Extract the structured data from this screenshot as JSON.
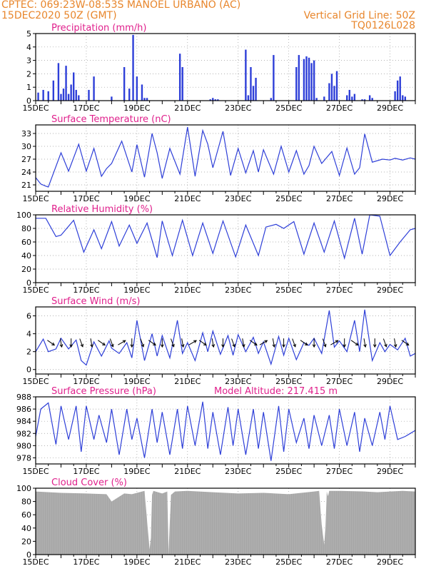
{
  "header": {
    "line1": "CPTEC:   069:23W-08:53S   MANOEL URBANO (AC)",
    "line2": "15DEC2020 50Z (GMT)",
    "vertical_grid": "Vertical Grid Line: 50Z",
    "product": "TQ0126L028"
  },
  "colors": {
    "header": "#e8862c",
    "title": "#e0208c",
    "line": "#2e3fd8",
    "cloud": "#a6a6a6",
    "grid": "#9a9a9a"
  },
  "x_tick_labels": [
    "15DEC",
    "17DEC",
    "19DEC",
    "21DEC",
    "23DEC",
    "25DEC",
    "27DEC",
    "29DEC"
  ],
  "chart_data": [
    {
      "type": "bar",
      "title": "Precipitation (mm/h)",
      "xlim": [
        0,
        15
      ],
      "ylim": [
        0,
        5
      ],
      "yticks": [
        0,
        1,
        2,
        3,
        4,
        5
      ],
      "x": [
        0.1,
        0.3,
        0.5,
        0.7,
        0.9,
        1.0,
        1.1,
        1.2,
        1.3,
        1.4,
        1.5,
        1.6,
        1.7,
        2.1,
        2.3,
        3.0,
        3.5,
        3.7,
        3.85,
        4.0,
        4.2,
        4.3,
        4.4,
        5.7,
        5.8,
        6.9,
        7.0,
        7.1,
        7.2,
        8.3,
        8.4,
        8.5,
        8.6,
        8.7,
        9.3,
        9.4,
        10.3,
        10.4,
        10.6,
        10.7,
        10.8,
        10.9,
        11.0,
        11.1,
        11.4,
        11.6,
        11.7,
        11.8,
        11.9,
        12.3,
        12.4,
        12.5,
        12.6,
        12.9,
        13.0,
        13.2,
        13.3,
        14.2,
        14.3,
        14.4,
        14.5,
        14.6
      ],
      "values": [
        0.6,
        0.8,
        0.7,
        1.5,
        2.8,
        0.5,
        0.9,
        2.6,
        0.5,
        1.2,
        2.1,
        0.8,
        0.4,
        0.8,
        1.8,
        0.3,
        2.5,
        0.9,
        4.9,
        1.8,
        1.2,
        0.2,
        0.2,
        3.5,
        2.5,
        0.1,
        0.2,
        0.1,
        0.1,
        3.8,
        0.4,
        2.5,
        1.1,
        1.7,
        0.2,
        3.4,
        2.5,
        3.4,
        3.1,
        3.3,
        3.2,
        2.8,
        3.0,
        0.2,
        0.3,
        1.3,
        2.0,
        1.1,
        2.2,
        0.4,
        0.8,
        0.3,
        0.5,
        0.1,
        0.1,
        0.4,
        0.2,
        0.7,
        1.5,
        1.8,
        0.4,
        0.3
      ]
    },
    {
      "type": "line",
      "title": "Surface Temperature (nC)",
      "xlim": [
        0,
        15
      ],
      "ylim": [
        19.5,
        35
      ],
      "yticks": [
        21,
        24,
        27,
        30,
        33
      ],
      "x": [
        0,
        0.2,
        0.4,
        0.5,
        1.0,
        1.3,
        1.7,
        2.0,
        2.3,
        2.6,
        2.8,
        3.0,
        3.4,
        3.8,
        4.0,
        4.3,
        4.6,
        4.8,
        5.0,
        5.3,
        5.7,
        6.0,
        6.3,
        6.6,
        6.8,
        7.0,
        7.4,
        7.7,
        8.0,
        8.3,
        8.6,
        8.8,
        9.0,
        9.4,
        9.7,
        10.0,
        10.3,
        10.6,
        10.8,
        11.0,
        11.3,
        11.7,
        12.0,
        12.3,
        12.6,
        12.8,
        13.0,
        13.3,
        13.7,
        14.0,
        14.2,
        14.5,
        14.8,
        15.0
      ],
      "values": [
        22.7,
        21.2,
        20.7,
        20.5,
        28.5,
        24.2,
        30.5,
        24.2,
        29.5,
        23.0,
        24.8,
        26.0,
        31.2,
        24.0,
        30.4,
        22.8,
        33.0,
        28.5,
        22.5,
        29.5,
        23.5,
        34.5,
        23.0,
        33.7,
        30.5,
        25.0,
        33.5,
        23.2,
        29.5,
        23.8,
        29.0,
        24.0,
        29.2,
        23.5,
        30.0,
        24.0,
        29.0,
        23.5,
        25.5,
        30.0,
        26.0,
        28.8,
        23.2,
        29.6,
        23.5,
        25.0,
        32.9,
        26.3,
        27.0,
        26.8,
        27.2,
        26.8,
        27.3,
        27.0
      ]
    },
    {
      "type": "line",
      "title": "Relative Humidity (%)",
      "xlim": [
        0,
        15
      ],
      "ylim": [
        0,
        100
      ],
      "yticks": [
        0,
        20,
        40,
        60,
        80,
        100
      ],
      "x": [
        0,
        0.4,
        0.8,
        1.0,
        1.5,
        1.9,
        2.3,
        2.6,
        3.0,
        3.3,
        3.7,
        4.0,
        4.4,
        4.8,
        5.0,
        5.4,
        5.8,
        6.2,
        6.6,
        7.0,
        7.4,
        7.9,
        8.3,
        8.8,
        9.1,
        9.5,
        9.8,
        10.2,
        10.6,
        11.0,
        11.4,
        11.8,
        12.2,
        12.6,
        12.9,
        13.2,
        13.6,
        14.0,
        14.4,
        14.8,
        15.0
      ],
      "values": [
        95,
        95,
        68,
        70,
        92,
        45,
        78,
        50,
        90,
        54,
        85,
        58,
        88,
        37,
        91,
        40,
        92,
        40,
        88,
        43,
        91,
        38,
        85,
        40,
        82,
        86,
        80,
        90,
        42,
        88,
        45,
        91,
        36,
        95,
        42,
        100,
        98,
        40,
        60,
        78,
        80
      ]
    },
    {
      "type": "line",
      "title": "Surface Wind (m/s)",
      "xlim": [
        0,
        15
      ],
      "ylim": [
        -0.5,
        7
      ],
      "yticks": [
        0,
        2,
        4,
        6
      ],
      "x": [
        0,
        0.3,
        0.5,
        0.8,
        1.0,
        1.3,
        1.6,
        1.8,
        2.0,
        2.3,
        2.6,
        2.9,
        3.0,
        3.3,
        3.6,
        3.8,
        4.0,
        4.3,
        4.6,
        4.8,
        5.0,
        5.3,
        5.6,
        5.8,
        6.0,
        6.3,
        6.6,
        6.8,
        7.0,
        7.3,
        7.6,
        7.8,
        8.0,
        8.3,
        8.6,
        8.8,
        9.0,
        9.3,
        9.6,
        9.8,
        10.0,
        10.3,
        10.6,
        10.8,
        11.0,
        11.3,
        11.6,
        11.8,
        12.0,
        12.3,
        12.6,
        12.8,
        13.0,
        13.3,
        13.6,
        13.8,
        14.0,
        14.3,
        14.6,
        14.8,
        15.0
      ],
      "values": [
        2.0,
        3.4,
        2.0,
        2.3,
        3.5,
        2.3,
        3.3,
        1.0,
        0.5,
        3.1,
        1.5,
        3.2,
        2.4,
        1.8,
        3.0,
        1.3,
        5.5,
        1.0,
        4.0,
        1.5,
        3.8,
        1.3,
        5.5,
        1.8,
        3.0,
        1.0,
        4.1,
        2.0,
        4.3,
        1.7,
        3.8,
        1.6,
        3.9,
        2.0,
        3.6,
        1.8,
        3.1,
        0.6,
        3.7,
        1.6,
        3.5,
        1.1,
        3.0,
        2.7,
        3.5,
        1.8,
        6.6,
        2.5,
        3.2,
        2.0,
        5.5,
        2.0,
        6.7,
        1.0,
        3.0,
        2.0,
        2.8,
        2.2,
        3.5,
        1.5,
        1.8
      ]
    },
    {
      "type": "line",
      "title": "Surface Pressure (hPa)",
      "annotation": "Model Altitude: 217.415 m",
      "xlim": [
        0,
        15
      ],
      "ylim": [
        977,
        988
      ],
      "yticks": [
        978,
        980,
        982,
        984,
        986,
        988
      ],
      "x": [
        0,
        0.2,
        0.5,
        0.8,
        1.0,
        1.3,
        1.6,
        1.8,
        2.0,
        2.3,
        2.5,
        2.8,
        3.0,
        3.3,
        3.6,
        3.8,
        4.0,
        4.3,
        4.6,
        4.8,
        5.0,
        5.3,
        5.6,
        5.8,
        6.0,
        6.3,
        6.6,
        6.8,
        7.0,
        7.3,
        7.6,
        7.8,
        8.0,
        8.3,
        8.6,
        8.8,
        9.0,
        9.3,
        9.6,
        9.8,
        10.0,
        10.3,
        10.6,
        10.8,
        11.0,
        11.3,
        11.6,
        11.8,
        12.0,
        12.3,
        12.6,
        12.8,
        13.0,
        13.3,
        13.6,
        13.8,
        14.0,
        14.3,
        14.6,
        14.8,
        15.0
      ],
      "values": [
        981.5,
        986.0,
        987.0,
        980.2,
        986.5,
        981.0,
        986.5,
        979.0,
        986.5,
        981.0,
        985.0,
        980.5,
        986.0,
        978.5,
        986.0,
        981.0,
        984.5,
        978.0,
        986.0,
        980.5,
        985.5,
        978.5,
        986.0,
        979.5,
        986.5,
        980.0,
        987.2,
        979.5,
        985.5,
        978.5,
        986.3,
        980.0,
        986.0,
        978.5,
        986.0,
        979.5,
        985.5,
        977.5,
        986.5,
        979.0,
        986.0,
        980.5,
        984.5,
        979.5,
        985.0,
        980.0,
        985.0,
        979.5,
        986.0,
        980.0,
        985.5,
        979.0,
        984.5,
        980.0,
        985.5,
        981.0,
        986.5,
        981.0,
        981.5,
        982.0,
        982.5
      ]
    },
    {
      "type": "area",
      "title": "Cloud Cover (%)",
      "xlim": [
        0,
        15
      ],
      "ylim": [
        0,
        100
      ],
      "yticks": [
        0,
        20,
        40,
        60,
        80,
        100
      ],
      "x": [
        0,
        1.0,
        2.0,
        2.8,
        3.0,
        3.5,
        3.8,
        4.0,
        4.3,
        4.45,
        4.5,
        4.55,
        4.6,
        4.65,
        5.0,
        5.2,
        5.25,
        5.3,
        5.35,
        5.5,
        6.0,
        7.0,
        8.0,
        9.0,
        10.0,
        11.0,
        11.2,
        11.3,
        11.4,
        11.45,
        11.5,
        11.55,
        11.6,
        12.0,
        13.0,
        13.5,
        14.0,
        14.5,
        15.0
      ],
      "values": [
        95,
        93,
        92,
        91,
        80,
        92,
        91,
        93,
        96,
        30,
        8,
        25,
        90,
        96,
        92,
        95,
        0,
        50,
        90,
        95,
        96,
        94,
        92,
        93,
        91,
        95,
        96,
        45,
        15,
        40,
        95,
        88,
        96,
        96,
        95,
        94,
        95,
        96,
        95
      ]
    }
  ]
}
